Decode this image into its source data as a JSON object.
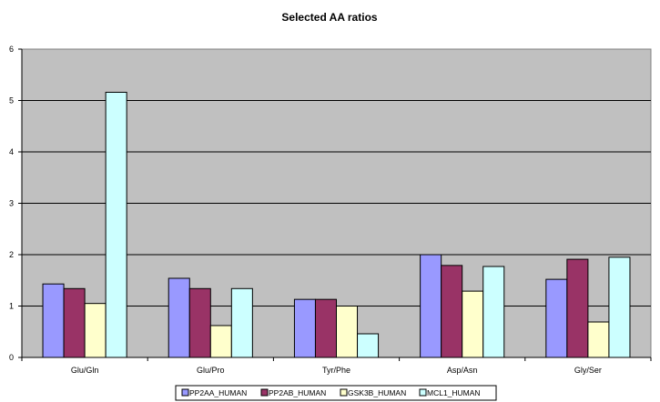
{
  "chart_data": {
    "type": "bar",
    "title": "Selected AA ratios",
    "xlabel": "",
    "ylabel": "",
    "categories": [
      "Glu/Gln",
      "Glu/Pro",
      "Tyr/Phe",
      "Asp/Asn",
      "Gly/Ser"
    ],
    "series": [
      {
        "name": "PP2AA_HUMAN",
        "color": "#9999FF",
        "values": [
          1.43,
          1.54,
          1.13,
          2.0,
          1.52
        ]
      },
      {
        "name": "PP2AB_HUMAN",
        "color": "#993366",
        "values": [
          1.34,
          1.34,
          1.13,
          1.79,
          1.91
        ]
      },
      {
        "name": "GSK3B_HUMAN",
        "color": "#FFFFCC",
        "values": [
          1.05,
          0.62,
          1.0,
          1.29,
          0.69
        ]
      },
      {
        "name": "MCL1_HUMAN",
        "color": "#CCFFFF",
        "values": [
          5.16,
          1.34,
          0.46,
          1.77,
          1.95
        ]
      }
    ],
    "ylim": [
      0,
      6
    ],
    "yticks": [
      0,
      1,
      2,
      3,
      4,
      5,
      6
    ],
    "grid": true,
    "legend": "bottom",
    "plot_background": "#C0C0C0"
  }
}
